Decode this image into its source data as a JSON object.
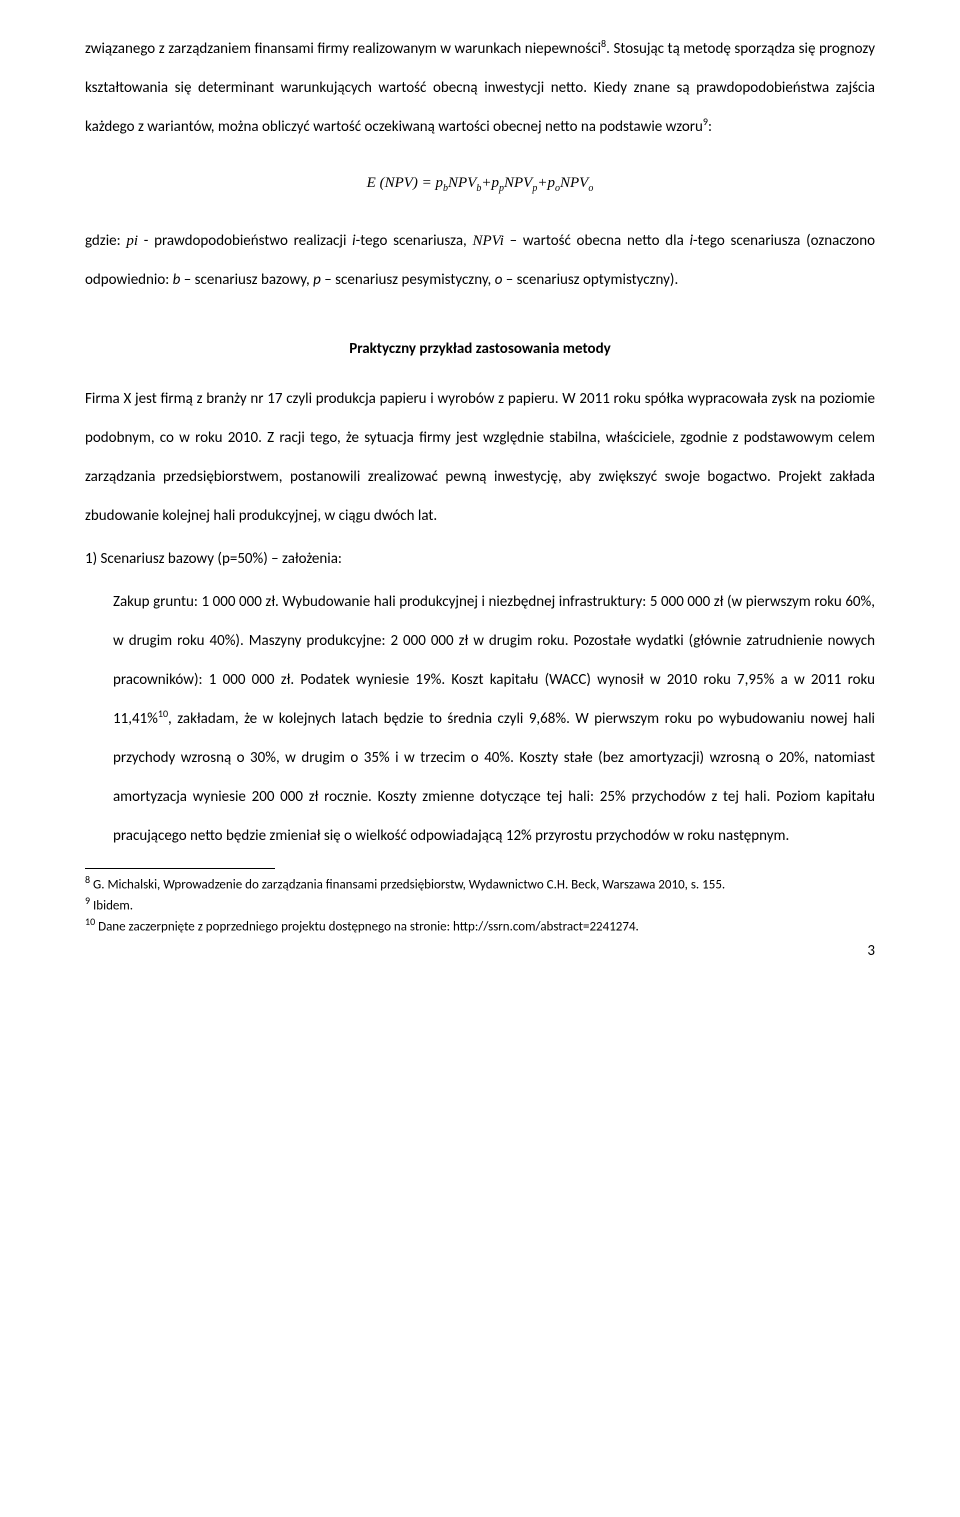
{
  "para1": "związanego z zarządzaniem finansami firmy realizowanym w warunkach niepewności",
  "para1_fn": "8",
  "para1b": ". Stosując tą metodę sporządza się prognozy kształtowania się determinant warunkujących wartość obecną inwestycji netto. Kiedy znane są prawdopodobieństwa zajścia każdego z wariantów, można obliczyć wartość oczekiwaną wartości obecnej netto na podstawie wzoru",
  "para1_fn2": "9",
  "para1c": ":",
  "formula_lhs": "E (NPV) = ",
  "formula_terms": [
    {
      "coef": "p",
      "coef_sub": "b",
      "var": "NPV",
      "var_sub": "b"
    },
    {
      "coef": "p",
      "coef_sub": "p",
      "var": "NPV",
      "var_sub": "p"
    },
    {
      "coef": "p",
      "coef_sub": "o",
      "var": "NPV",
      "var_sub": "o"
    }
  ],
  "para2_a": "gdzie: ",
  "para2_pi": "pi",
  "para2_b": " - prawdopodobieństwo realizacji ",
  "para2_i": "i",
  "para2_c": "-tego scenariusza, ",
  "para2_npvi": "NPVi",
  "para2_d": " – wartość obecna netto dla ",
  "para2_i2": "i",
  "para2_e": "-tego scenariusza (oznaczono odpowiednio: ",
  "para2_b2": "b",
  "para2_f": " – scenariusz bazowy, ",
  "para2_p": "p",
  "para2_g": " – scenariusz pesymistyczny, ",
  "para2_o": "o",
  "para2_h": " – scenariusz optymistyczny).",
  "section_title": "Praktyczny przykład zastosowania metody",
  "para3": "Firma X jest firmą z branży nr 17 czyli produkcja papieru i wyrobów z papieru. W 2011 roku spółka wypracowała zysk na poziomie podobnym, co w roku 2010. Z racji tego, że sytuacja firmy jest względnie stabilna, właściciele, zgodnie z podstawowym celem zarządzania przedsiębiorstwem, postanowili zrealizować pewną inwestycję, aby zwiększyć swoje bogactwo. Projekt zakłada zbudowanie kolejnej hali produkcyjnej, w ciągu dwóch lat.",
  "list1": "1)  Scenariusz bazowy (p=50%) – założenia:",
  "indent_a": "Zakup gruntu: 1 000 000 zł. Wybudowanie hali produkcyjnej i niezbędnej infrastruktury: 5 000 000 zł (w pierwszym roku 60%, w drugim roku 40%). Maszyny produkcyjne: 2 000 000 zł w drugim roku. Pozostałe wydatki (głównie zatrudnienie nowych pracowników): 1 000 000 zł. Podatek wyniesie 19%. Koszt kapitału (WACC) wynosił w 2010 roku 7,95% a w 2011 roku 11,41%",
  "indent_fn": "10",
  "indent_b": ", zakładam, że w kolejnych latach będzie to średnia czyli 9,68%. W pierwszym roku po wybudowaniu nowej hali przychody wzrosną o 30%, w drugim o 35% i w trzecim o 40%. Koszty stałe (bez amortyzacji) wzrosną o 20%, natomiast amortyzacja wyniesie 200 000 zł rocznie. Koszty zmienne dotyczące tej hali: 25% przychodów z tej hali. Poziom kapitału pracującego netto będzie zmieniał się o wielkość odpowiadającą 12% przyrostu przychodów w roku następnym.",
  "fn8_num": "8",
  "fn8": " G. Michalski, Wprowadzenie do zarządzania finansami przedsiębiorstw, Wydawnictwo C.H. Beck, Warszawa 2010, s. 155.",
  "fn9_num": "9",
  "fn9": " Ibidem.",
  "fn10_num": "10",
  "fn10": " Dane zaczerpnięte z poprzedniego projektu dostępnego na stronie: http://ssrn.com/abstract=2241274.",
  "page_number": "3"
}
